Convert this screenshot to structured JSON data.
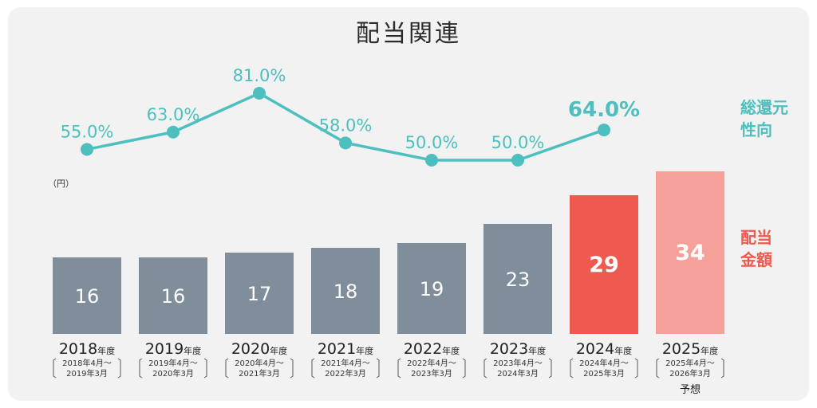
{
  "title": "配当関連",
  "unit_label": "（円）",
  "legend": {
    "payout_ratio": [
      "総還元",
      "性向"
    ],
    "dividend": [
      "配当",
      "金額"
    ]
  },
  "forecast_label": "予想",
  "year_suffix": "年度",
  "colors": {
    "line": "#4dbfbf",
    "bar_actual": "#808d9a",
    "bar_current": "#ee5a4f",
    "bar_forecast": "#f5a098",
    "background": "#f2f2f2"
  },
  "chart_data": [
    {
      "type": "line",
      "name": "総還元性向",
      "categories": [
        "2018",
        "2019",
        "2020",
        "2021",
        "2022",
        "2023",
        "2024"
      ],
      "values": [
        55.0,
        63.0,
        81.0,
        58.0,
        50.0,
        50.0,
        64.0
      ],
      "labels": [
        "55.0%",
        "63.0%",
        "81.0%",
        "58.0%",
        "50.0%",
        "50.0%",
        "64.0%"
      ],
      "highlight_index": 6
    },
    {
      "type": "bar",
      "name": "配当金額",
      "unit": "円",
      "categories": [
        "2018",
        "2019",
        "2020",
        "2021",
        "2022",
        "2023",
        "2024",
        "2025"
      ],
      "values": [
        16,
        16,
        17,
        18,
        19,
        23,
        29,
        34
      ],
      "periods": [
        [
          "2018年4月～",
          "2019年3月"
        ],
        [
          "2019年4月～",
          "2020年3月"
        ],
        [
          "2020年4月～",
          "2021年3月"
        ],
        [
          "2021年4月～",
          "2022年3月"
        ],
        [
          "2022年4月～",
          "2023年3月"
        ],
        [
          "2023年4月～",
          "2024年3月"
        ],
        [
          "2024年4月～",
          "2025年3月"
        ],
        [
          "2025年4月～",
          "2026年3月"
        ]
      ],
      "highlight_index": 6,
      "forecast_index": 7
    }
  ]
}
